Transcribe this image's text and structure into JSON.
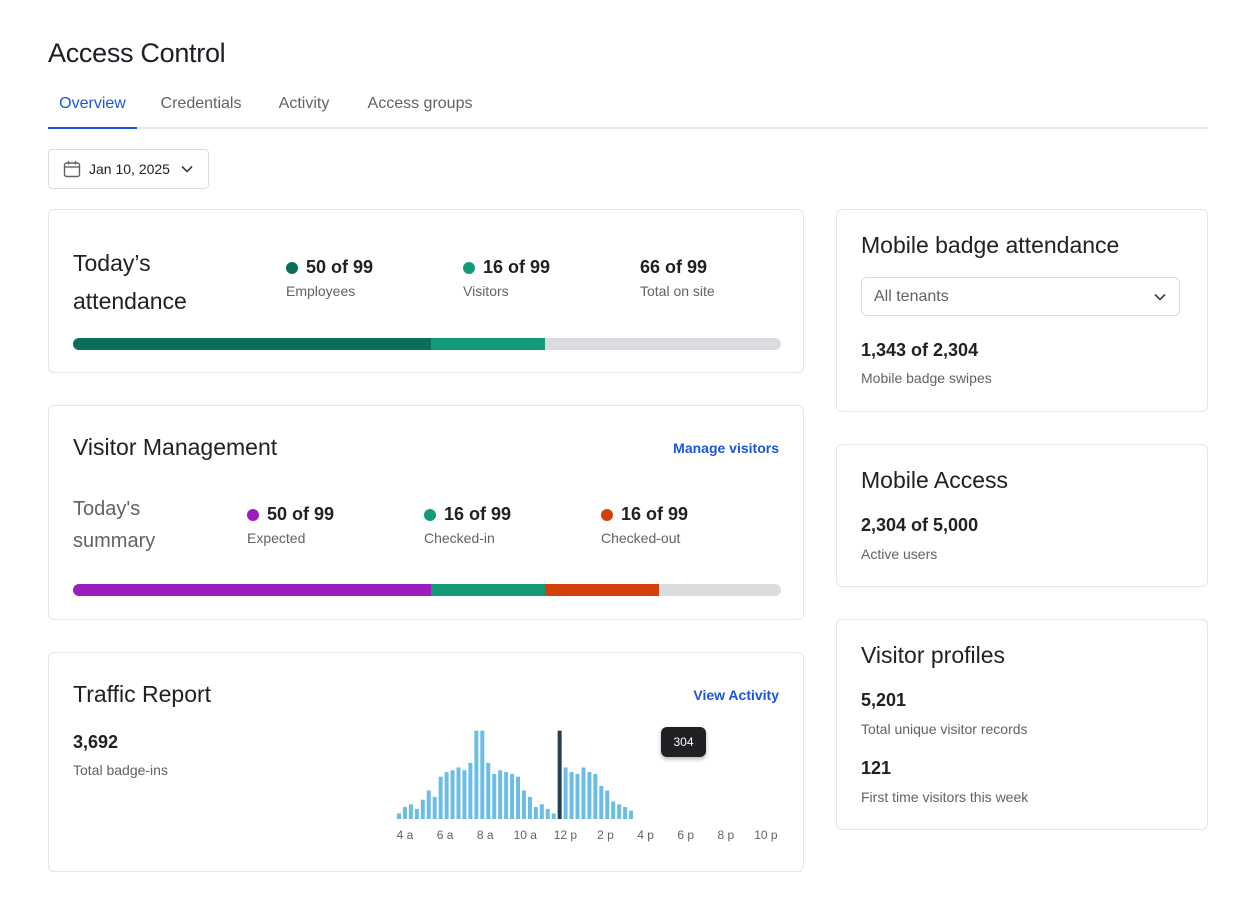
{
  "page": {
    "title": "Access Control"
  },
  "tabs": [
    {
      "label": "Overview",
      "active": true
    },
    {
      "label": "Credentials",
      "active": false
    },
    {
      "label": "Activity",
      "active": false
    },
    {
      "label": "Access groups",
      "active": false
    }
  ],
  "date_picker": {
    "value": "Jan 10, 2025",
    "icon": "calendar-icon"
  },
  "attendance": {
    "title_line1": "Today’s",
    "title_line2": "attendance",
    "stats": [
      {
        "value": "50 of 99",
        "label": "Employees",
        "color": "#0a7057"
      },
      {
        "value": "16 of 99",
        "label": "Visitors",
        "color": "#149a77"
      },
      {
        "value": "66 of 99",
        "label": "Total on site"
      }
    ],
    "bar": [
      {
        "fraction": 0.5051,
        "color": "#0a7057"
      },
      {
        "fraction": 0.1616,
        "color": "#149a77"
      }
    ],
    "bar_track_color": "#dadce0"
  },
  "visitor_management": {
    "title": "Visitor Management",
    "link": "Manage visitors",
    "summary_line1": "Today's",
    "summary_line2": "summary",
    "stats": [
      {
        "value": "50 of 99",
        "label": "Expected",
        "color": "#9c1dbd"
      },
      {
        "value": "16 of 99",
        "label": "Checked-in",
        "color": "#149a77"
      },
      {
        "value": "16 of 99",
        "label": "Checked-out",
        "color": "#d3410b"
      }
    ],
    "bar": [
      {
        "fraction": 0.5051,
        "color": "#9c1dbd"
      },
      {
        "fraction": 0.1616,
        "color": "#149a77"
      },
      {
        "fraction": 0.1616,
        "color": "#d3410b"
      }
    ]
  },
  "traffic_report": {
    "title": "Traffic Report",
    "link": "View Activity",
    "total_value": "3,692",
    "total_label": "Total badge-ins",
    "tooltip": "304"
  },
  "chart_data": {
    "type": "bar",
    "x_tick_labels": [
      "4 a",
      "6 a",
      "8 a",
      "10 a",
      "12 p",
      "2 p",
      "4 p",
      "6 p",
      "8 p",
      "10 p"
    ],
    "values": [
      6,
      13,
      16,
      11,
      21,
      31,
      24,
      46,
      51,
      53,
      56,
      53,
      61,
      96,
      96,
      61,
      49,
      53,
      51,
      49,
      46,
      31,
      24,
      13,
      16,
      11,
      6,
      96,
      56,
      51,
      49,
      56,
      51,
      49,
      36,
      31,
      19,
      16,
      13,
      9
    ],
    "highlight_index": 27,
    "highlight_color": "#22405a",
    "bar_color": "#6bbde6",
    "highlight_value_label": "304",
    "ylim": [
      0,
      100
    ]
  },
  "mobile_badge": {
    "title": "Mobile badge attendance",
    "select_value": "All tenants",
    "value": "1,343 of 2,304",
    "label": "Mobile badge swipes"
  },
  "mobile_access": {
    "title": "Mobile Access",
    "value": "2,304 of 5,000",
    "label": "Active users"
  },
  "visitor_profiles": {
    "title": "Visitor profiles",
    "value1": "5,201",
    "label1": "Total unique visitor records",
    "value2": "121",
    "label2": "First time visitors this week"
  }
}
